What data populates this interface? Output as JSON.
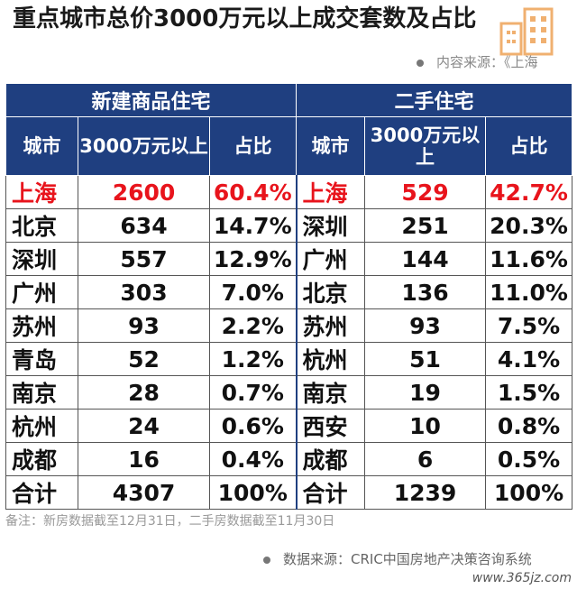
{
  "title": "重点城市总价3000万元以上成交套数及占比",
  "source_top": "内容来源：《上海",
  "table": {
    "group_new": "新建商品住宅",
    "group_second": "二手住宅",
    "col_city": "城市",
    "col_count": "3000万元以上",
    "col_share": "占比",
    "rows": [
      {
        "c1": "上海",
        "n1": "2600",
        "p1": "60.4%",
        "c2": "上海",
        "n2": "529",
        "p2": "42.7%"
      },
      {
        "c1": "北京",
        "n1": "634",
        "p1": "14.7%",
        "c2": "深圳",
        "n2": "251",
        "p2": "20.3%"
      },
      {
        "c1": "深圳",
        "n1": "557",
        "p1": "12.9%",
        "c2": "广州",
        "n2": "144",
        "p2": "11.6%"
      },
      {
        "c1": "广州",
        "n1": "303",
        "p1": "7.0%",
        "c2": "北京",
        "n2": "136",
        "p2": "11.0%"
      },
      {
        "c1": "苏州",
        "n1": "93",
        "p1": "2.2%",
        "c2": "苏州",
        "n2": "93",
        "p2": "7.5%"
      },
      {
        "c1": "青岛",
        "n1": "52",
        "p1": "1.2%",
        "c2": "杭州",
        "n2": "51",
        "p2": "4.1%"
      },
      {
        "c1": "南京",
        "n1": "28",
        "p1": "0.7%",
        "c2": "南京",
        "n2": "19",
        "p2": "1.5%"
      },
      {
        "c1": "杭州",
        "n1": "24",
        "p1": "0.6%",
        "c2": "西安",
        "n2": "10",
        "p2": "0.8%"
      },
      {
        "c1": "成都",
        "n1": "16",
        "p1": "0.4%",
        "c2": "成都",
        "n2": "6",
        "p2": "0.5%"
      },
      {
        "c1": "合计",
        "n1": "4307",
        "p1": "100%",
        "c2": "合计",
        "n2": "1239",
        "p2": "100%"
      }
    ]
  },
  "note": "备注：新房数据截至12月31日，二手房数据截至11月30日",
  "source_bottom": "数据来源：CRIC中国房地产决策咨询系统",
  "watermark": "www.365jz.com",
  "colors": {
    "header": "#1f3f80",
    "highlight": "#e8141c"
  }
}
